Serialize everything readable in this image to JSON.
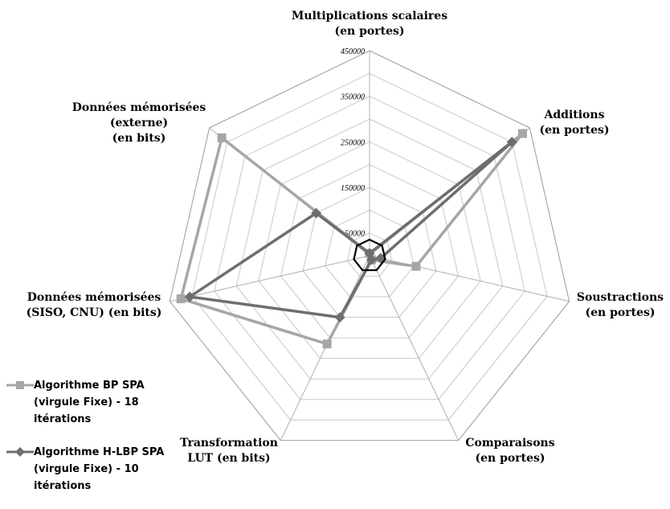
{
  "chart_data": {
    "type": "radar",
    "axes": [
      {
        "label": [
          "Multiplications scalaires",
          "(en portes)"
        ]
      },
      {
        "label": [
          "Additions",
          "(en portes)"
        ]
      },
      {
        "label": [
          "Soustractions",
          "(en portes)"
        ]
      },
      {
        "label": [
          "Comparaisons",
          "(en portes)"
        ]
      },
      {
        "label": [
          "Transformation",
          "LUT (en bits)"
        ]
      },
      {
        "label": [
          "Données mémorisées",
          "(SISO, CNU) (en bits)"
        ]
      },
      {
        "label": [
          "Données mémorisées",
          "(externe)",
          "(en bits)"
        ]
      }
    ],
    "rmax": 450000,
    "tick_values": [
      0,
      50000,
      100000,
      150000,
      200000,
      250000,
      300000,
      350000,
      400000,
      450000
    ],
    "tick_labels": [
      "50000",
      "150000",
      "250000",
      "350000",
      "450000"
    ],
    "tick_label_values": [
      50000,
      150000,
      250000,
      350000,
      450000
    ],
    "series": [
      {
        "name": "Algorithme BP SPA (virgule Fixe) - 18 itérations",
        "color": "#a6a6a6",
        "marker": "square",
        "values": [
          5000,
          430000,
          105000,
          10000,
          215000,
          425000,
          415000
        ]
      },
      {
        "name": "Algorithme H-LBP SPA (virgule Fixe) - 10 itérations",
        "color": "#6e6e6e",
        "marker": "diamond",
        "values": [
          5000,
          400000,
          25000,
          10000,
          150000,
          405000,
          150000
        ]
      }
    ],
    "legend_position": "bottom-left"
  }
}
